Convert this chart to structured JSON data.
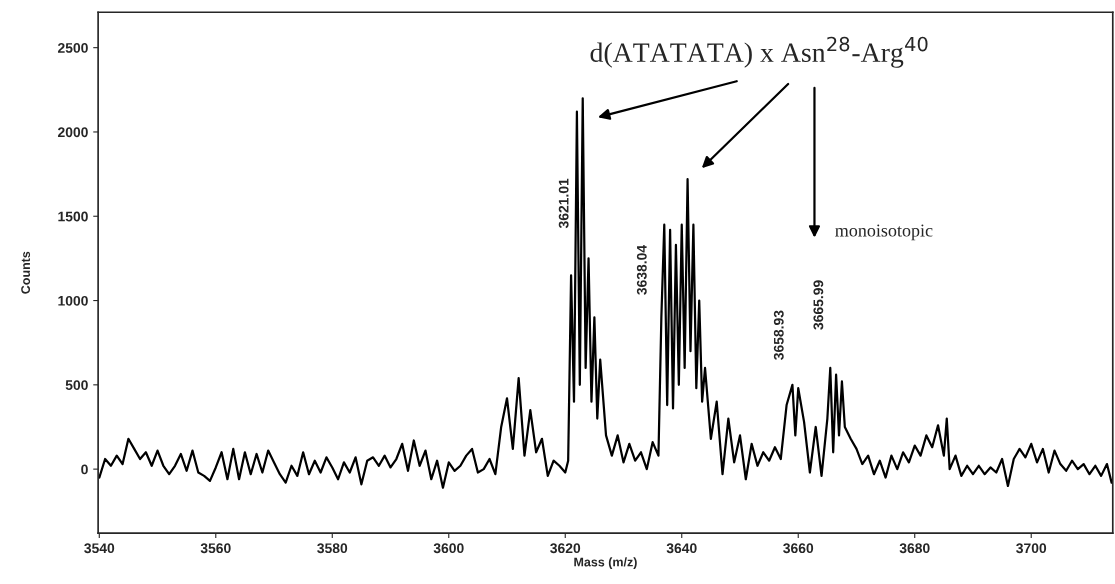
{
  "chart_data": {
    "type": "line",
    "xlabel": "Mass (m/z)",
    "ylabel": "Counts",
    "xlim": [
      3539.8,
      3714
    ],
    "ylim": [
      -380,
      2710
    ],
    "xticks": [
      3540,
      3560,
      3580,
      3600,
      3620,
      3640,
      3660,
      3680,
      3700
    ],
    "yticks": [
      0,
      500,
      1000,
      1500,
      2000,
      2500
    ],
    "grid": false,
    "line_style": "solid",
    "marker": "none",
    "annotations": [
      "d(ATATATA) x Asn$^{28}$-Arg$^{40}$",
      "3621.01",
      "3638.04",
      "3658.93",
      "3665.99",
      "monoisotopic"
    ],
    "series": [
      {
        "color": "#000000",
        "x": [
          3540,
          3541,
          3542,
          3543,
          3544,
          3545,
          3546,
          3547,
          3548,
          3549,
          3550,
          3551,
          3552,
          3553,
          3554,
          3555,
          3556,
          3557,
          3558,
          3559,
          3560,
          3561,
          3562,
          3563,
          3564,
          3565,
          3566,
          3567,
          3568,
          3569,
          3570,
          3571,
          3572,
          3573,
          3574,
          3575,
          3576,
          3577,
          3578,
          3579,
          3580,
          3581,
          3582,
          3583,
          3584,
          3585,
          3586,
          3587,
          3588,
          3589,
          3590,
          3591,
          3592,
          3593,
          3594,
          3595,
          3596,
          3597,
          3598,
          3599,
          3600,
          3601,
          3602,
          3603,
          3604,
          3605,
          3606,
          3607,
          3608,
          3609,
          3610,
          3611,
          3612,
          3613,
          3614,
          3615,
          3616,
          3617,
          3618,
          3619,
          3620,
          3620.5,
          3621,
          3621.5,
          3622,
          3622.5,
          3623,
          3623.5,
          3624,
          3624.5,
          3625,
          3625.5,
          3626,
          3627,
          3628,
          3629,
          3630,
          3631,
          3632,
          3633,
          3634,
          3635,
          3636,
          3636.5,
          3637,
          3637.5,
          3638,
          3638.5,
          3639,
          3639.5,
          3640,
          3640.5,
          3641,
          3641.5,
          3642,
          3642.5,
          3643,
          3643.5,
          3644,
          3645,
          3646,
          3647,
          3648,
          3649,
          3650,
          3651,
          3652,
          3653,
          3654,
          3655,
          3656,
          3657,
          3658,
          3659,
          3659.5,
          3660,
          3661,
          3662,
          3663,
          3664,
          3665,
          3665.5,
          3666,
          3666.5,
          3667,
          3667.5,
          3668,
          3669,
          3670,
          3671,
          3672,
          3673,
          3674,
          3675,
          3676,
          3677,
          3678,
          3679,
          3680,
          3681,
          3682,
          3683,
          3684,
          3685,
          3685.5,
          3686,
          3687,
          3688,
          3689,
          3690,
          3691,
          3692,
          3693,
          3694,
          3695,
          3696,
          3697,
          3698,
          3699,
          3700,
          3701,
          3702,
          3703,
          3704,
          3705,
          3706,
          3707,
          3708,
          3709,
          3710,
          3711,
          3712,
          3713,
          3713.8
        ],
        "values": [
          -50,
          60,
          20,
          80,
          30,
          180,
          120,
          60,
          100,
          20,
          110,
          20,
          -30,
          20,
          90,
          -10,
          110,
          -20,
          -40,
          -70,
          10,
          100,
          -60,
          120,
          -60,
          100,
          -30,
          90,
          -20,
          110,
          40,
          -30,
          -80,
          20,
          -40,
          100,
          -30,
          50,
          -20,
          70,
          10,
          -60,
          40,
          -20,
          70,
          -90,
          50,
          70,
          20,
          80,
          10,
          60,
          150,
          -10,
          170,
          20,
          110,
          -60,
          50,
          -110,
          40,
          -10,
          20,
          80,
          120,
          -20,
          0,
          60,
          -30,
          250,
          420,
          120,
          540,
          80,
          350,
          100,
          180,
          -40,
          50,
          20,
          -20,
          50,
          1150,
          400,
          2120,
          500,
          2200,
          600,
          1250,
          400,
          900,
          300,
          650,
          200,
          80,
          200,
          40,
          150,
          50,
          100,
          0,
          160,
          80,
          900,
          1450,
          380,
          1420,
          360,
          1330,
          500,
          1450,
          600,
          1720,
          700,
          1450,
          480,
          1000,
          400,
          600,
          180,
          400,
          -30,
          300,
          40,
          200,
          -60,
          150,
          20,
          100,
          50,
          130,
          60,
          380,
          500,
          200,
          480,
          280,
          -20,
          250,
          -40,
          300,
          600,
          100,
          560,
          200,
          520,
          250,
          180,
          120,
          30,
          80,
          -30,
          50,
          -50,
          80,
          0,
          100,
          40,
          140,
          80,
          200,
          130,
          260,
          80,
          300,
          0,
          80,
          -40,
          20,
          -30,
          20,
          -30,
          10,
          -20,
          60,
          -100,
          60,
          120,
          70,
          150,
          40,
          120,
          -20,
          110,
          30,
          -10,
          50,
          0,
          30,
          -30,
          20,
          -40,
          30,
          -80
        ]
      }
    ]
  }
}
